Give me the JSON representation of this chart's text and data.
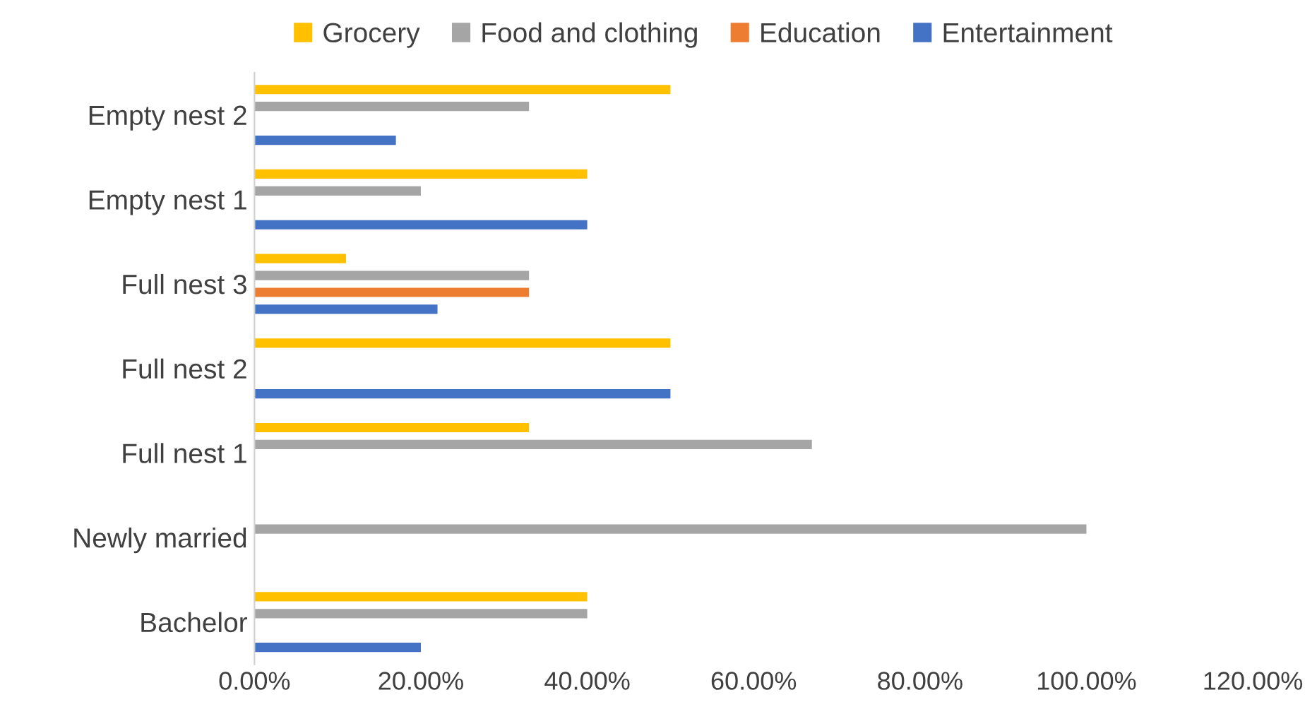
{
  "chart_data": {
    "type": "bar",
    "orientation": "horizontal",
    "categories": [
      "Empty nest 2",
      "Empty nest 1",
      "Full nest 3",
      "Full nest 2",
      "Full nest 1",
      "Newly married",
      "Bachelor"
    ],
    "series": [
      {
        "name": "Grocery",
        "color": "#ffc000",
        "values": [
          50,
          40,
          11,
          50,
          33,
          null,
          40
        ]
      },
      {
        "name": "Food and clothing",
        "color": "#a5a5a5",
        "values": [
          33,
          20,
          33,
          null,
          67,
          100,
          40
        ]
      },
      {
        "name": "Education",
        "color": "#ed7d31",
        "values": [
          null,
          null,
          33,
          null,
          null,
          null,
          null
        ]
      },
      {
        "name": "Entertainment",
        "color": "#4472c4",
        "values": [
          17,
          40,
          22,
          50,
          null,
          null,
          20
        ]
      }
    ],
    "xlim": [
      0,
      120
    ],
    "xticks": [
      {
        "value": 0,
        "label": "0.00%"
      },
      {
        "value": 20,
        "label": "20.00%"
      },
      {
        "value": 40,
        "label": "40.00%"
      },
      {
        "value": 60,
        "label": "60.00%"
      },
      {
        "value": 80,
        "label": "80.00%"
      },
      {
        "value": 100,
        "label": "100.00%"
      },
      {
        "value": 120,
        "label": "120.00%"
      }
    ],
    "legend": "top",
    "grid": false
  }
}
